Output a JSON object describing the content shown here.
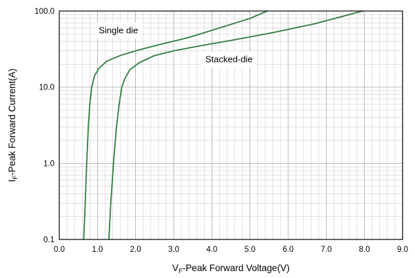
{
  "chart_data": {
    "type": "line",
    "xlabel": {
      "main": "V",
      "sub": "F",
      "rest": "-Peak Forward Voltage(V)"
    },
    "ylabel": {
      "main": "I",
      "sub": "F",
      "rest": "-Peak Forward Current(A)"
    },
    "xlim": [
      0,
      9
    ],
    "ylim": [
      0.1,
      100
    ],
    "yscale": "log",
    "grid": true,
    "x_ticks": [
      0,
      1,
      2,
      3,
      4,
      5,
      6,
      7,
      8,
      9
    ],
    "x_tick_labels": [
      "0.0",
      "1.0",
      "2.0",
      "3.0",
      "4.0",
      "5.0",
      "6.0",
      "7.0",
      "8.0",
      "9.0"
    ],
    "y_ticks": [
      0.1,
      1,
      10,
      100
    ],
    "y_tick_labels": [
      "0.1",
      "1.0",
      "10.0",
      "100.0"
    ],
    "series": [
      {
        "name": "Single die",
        "color": "#2e7d3a",
        "x": [
          0.64,
          0.68,
          0.72,
          0.76,
          0.8,
          0.85,
          0.92,
          1.05,
          1.25,
          1.6,
          2.0,
          2.6,
          3.4,
          4.2,
          5.0,
          5.45
        ],
        "y": [
          0.1,
          0.3,
          1.0,
          3.0,
          6.0,
          10.0,
          14.0,
          18.0,
          22.0,
          26.0,
          30.0,
          36.0,
          45.0,
          60.0,
          80.0,
          100.0
        ]
      },
      {
        "name": "Stacked-die",
        "color": "#2e7d3a",
        "x": [
          1.3,
          1.35,
          1.42,
          1.5,
          1.57,
          1.64,
          1.72,
          1.85,
          2.1,
          2.5,
          3.0,
          3.7,
          4.6,
          5.6,
          6.7,
          7.95
        ],
        "y": [
          0.1,
          0.3,
          1.0,
          3.0,
          6.0,
          10.0,
          13.0,
          17.0,
          21.0,
          26.0,
          30.0,
          35.0,
          42.0,
          52.0,
          68.0,
          100.0
        ]
      }
    ],
    "annotations": [
      {
        "text": "Single die",
        "x": 1.55,
        "y": 55
      },
      {
        "text": "Stacked-die",
        "x": 4.45,
        "y": 23
      }
    ]
  }
}
